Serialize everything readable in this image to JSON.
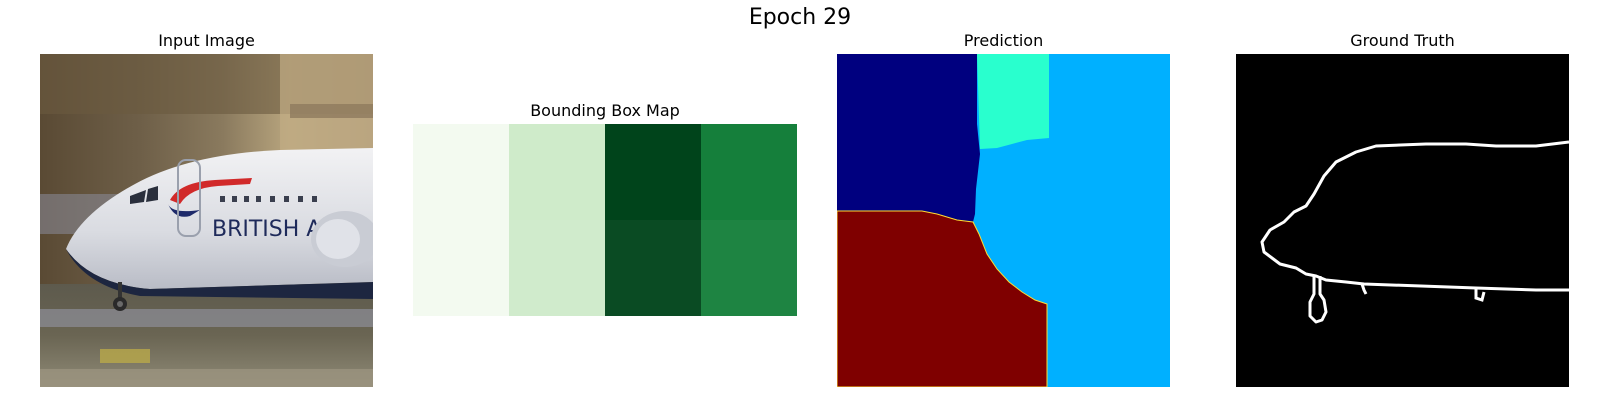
{
  "figure": {
    "title": "Epoch 29"
  },
  "panels": {
    "input": {
      "title": "Input Image",
      "sign_text": "BRITISH A"
    },
    "bbox": {
      "title": "Bounding Box Map",
      "cells": [
        {
          "color": "#f3faf0"
        },
        {
          "color": "#cfebca"
        },
        {
          "color": "#00441b"
        },
        {
          "color": "#157f3b"
        }
      ]
    },
    "prediction": {
      "title": "Prediction",
      "colors": {
        "navy": "#00007f",
        "teal": "#29ffce",
        "sky": "#00b0ff",
        "maroon": "#7f0000"
      }
    },
    "ground_truth": {
      "title": "Ground Truth"
    }
  }
}
